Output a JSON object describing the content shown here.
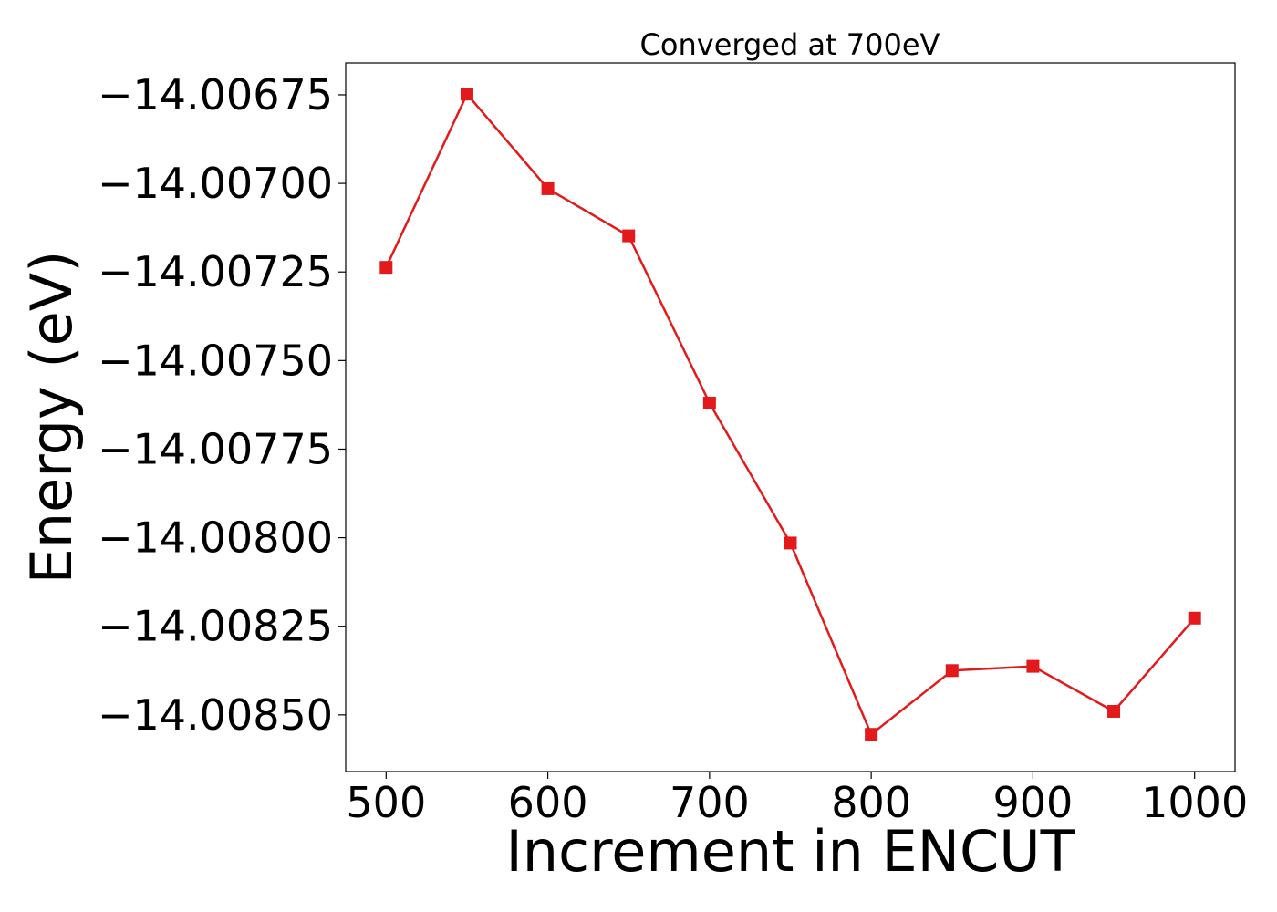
{
  "chart_data": {
    "type": "line",
    "title": "Converged at 700eV",
    "xlabel": "Increment in ENCUT",
    "ylabel": "Energy (eV)",
    "x": [
      500,
      550,
      600,
      650,
      700,
      750,
      800,
      850,
      900,
      950,
      1000
    ],
    "series": [
      {
        "values": [
          -14.007237,
          -14.006748,
          -14.007015,
          -14.007148,
          -14.00762,
          -14.008015,
          -14.008555,
          -14.008375,
          -14.008363,
          -14.00849,
          -14.008227
        ],
        "color": "#e31a1c",
        "marker": "square"
      }
    ],
    "xlim": [
      475,
      1025
    ],
    "ylim": [
      -14.00866,
      -14.00666
    ],
    "xticks": [
      500,
      600,
      700,
      800,
      900,
      1000
    ],
    "xtick_labels": [
      "500",
      "600",
      "700",
      "800",
      "900",
      "1000"
    ],
    "yticks": [
      -14.00675,
      -14.007,
      -14.00725,
      -14.0075,
      -14.00775,
      -14.008,
      -14.00825,
      -14.0085
    ],
    "ytick_labels": [
      "−14.00675",
      "−14.00700",
      "−14.00725",
      "−14.00750",
      "−14.00775",
      "−14.00800",
      "−14.00825",
      "−14.00850"
    ],
    "grid": false,
    "legend": false
  }
}
